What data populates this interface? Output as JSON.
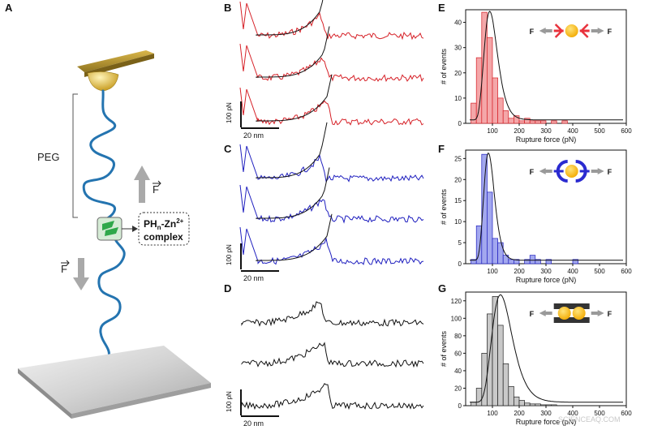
{
  "panels": {
    "A": {
      "label": "A",
      "peg_label": "PEG",
      "force_symbol": "F",
      "complex_line1": "PH",
      "complex_sub": "n",
      "complex_sup": "-Zn",
      "complex_sup2": "2+",
      "complex_line2": "complex"
    },
    "B": {
      "label": "B",
      "color": "#d62027",
      "scale_y": "100 pN",
      "scale_x": "20 nm"
    },
    "C": {
      "label": "C",
      "color": "#1f1fbf",
      "scale_y": "100 pN",
      "scale_x": "20 nm"
    },
    "D": {
      "label": "D",
      "color": "#111111",
      "scale_y": "100 pN",
      "scale_x": "20 nm"
    },
    "E": {
      "label": "E"
    },
    "F": {
      "label": "F"
    },
    "G": {
      "label": "G"
    }
  },
  "watermark": "SCIENCEAQ.COM",
  "chart_data": [
    {
      "panel": "E",
      "type": "bar",
      "xlabel": "Rupture force (pN)",
      "ylabel": "# of events",
      "xlim": [
        0,
        600
      ],
      "ylim": [
        0,
        45
      ],
      "xticks": [
        100,
        200,
        300,
        400,
        500,
        600
      ],
      "yticks": [
        0,
        10,
        20,
        30,
        40
      ],
      "bin_width": 20,
      "bins_start": 20,
      "values": [
        8,
        26,
        44,
        34,
        18,
        10,
        5,
        2,
        3,
        1,
        2,
        1,
        1,
        1,
        0,
        1,
        0,
        1,
        0,
        0,
        0,
        0,
        0,
        0,
        0,
        0,
        0,
        0,
        0
      ],
      "fill": "#f4a7a9",
      "stroke": "#d62027",
      "fit_peak": 90,
      "fit_height": 43,
      "fit_sigma": 25,
      "icon_color": "#e8323c"
    },
    {
      "panel": "F",
      "type": "bar",
      "xlabel": "Rupture force (pN)",
      "ylabel": "# of events",
      "xlim": [
        0,
        600
      ],
      "ylim": [
        0,
        27
      ],
      "xticks": [
        100,
        200,
        300,
        400,
        500,
        600
      ],
      "yticks": [
        0,
        5,
        10,
        15,
        20,
        25
      ],
      "bin_width": 20,
      "bins_start": 20,
      "values": [
        1,
        9,
        26,
        17,
        6,
        5,
        2,
        1,
        1,
        0,
        1,
        2,
        1,
        0,
        1,
        0,
        0,
        0,
        0,
        1,
        0,
        0,
        0,
        0,
        0,
        0,
        0,
        0,
        0
      ],
      "fill": "#a3a8ef",
      "stroke": "#1f1fbf",
      "fit_peak": 85,
      "fit_height": 25.5,
      "fit_sigma": 20,
      "icon_color": "#2a2ad0"
    },
    {
      "panel": "G",
      "type": "bar",
      "xlabel": "Rupture force (pN)",
      "ylabel": "# of events",
      "xlim": [
        0,
        600
      ],
      "ylim": [
        0,
        130
      ],
      "xticks": [
        100,
        200,
        300,
        400,
        500,
        600
      ],
      "yticks": [
        0,
        20,
        40,
        60,
        80,
        100,
        120
      ],
      "bin_width": 20,
      "bins_start": 20,
      "values": [
        4,
        20,
        60,
        105,
        125,
        92,
        48,
        22,
        10,
        6,
        3,
        2,
        2,
        1,
        1,
        1,
        0,
        0,
        0,
        0,
        0,
        0,
        0,
        0,
        0,
        0,
        0,
        0,
        0
      ],
      "fill": "#c9c9c9",
      "stroke": "#222222",
      "fit_peak": 130,
      "fit_height": 123,
      "fit_sigma": 38,
      "icon_color": "#333333"
    }
  ]
}
